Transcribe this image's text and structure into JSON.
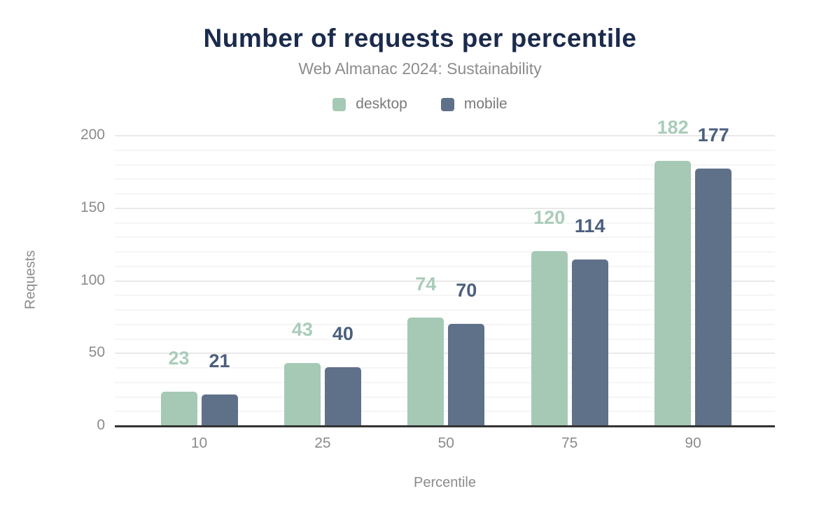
{
  "chart_data": {
    "type": "bar",
    "title": "Number of requests per percentile",
    "subtitle": "Web Almanac 2024: Sustainability",
    "categories": [
      "10",
      "25",
      "50",
      "75",
      "90"
    ],
    "series": [
      {
        "name": "desktop",
        "color": "#a5c9b5",
        "label_color": "#a9ccb9",
        "values": [
          23,
          43,
          74,
          120,
          182
        ]
      },
      {
        "name": "mobile",
        "color": "#5f7089",
        "label_color": "#4c5f7e",
        "values": [
          21,
          40,
          70,
          114,
          177
        ]
      }
    ],
    "xlabel": "Percentile",
    "ylabel": "Requests",
    "ylim": [
      0,
      200
    ],
    "yticks": [
      0,
      50,
      100,
      150,
      200
    ],
    "minor_grid_step": 10,
    "grid": "horizontal",
    "legend_position": "top",
    "background_color": "#ffffff",
    "title_color": "#1b2b4d",
    "subtitle_color": "#8c8c8c",
    "axis_text_color": "#8b8b8b",
    "axis_line_color": "#333333"
  }
}
